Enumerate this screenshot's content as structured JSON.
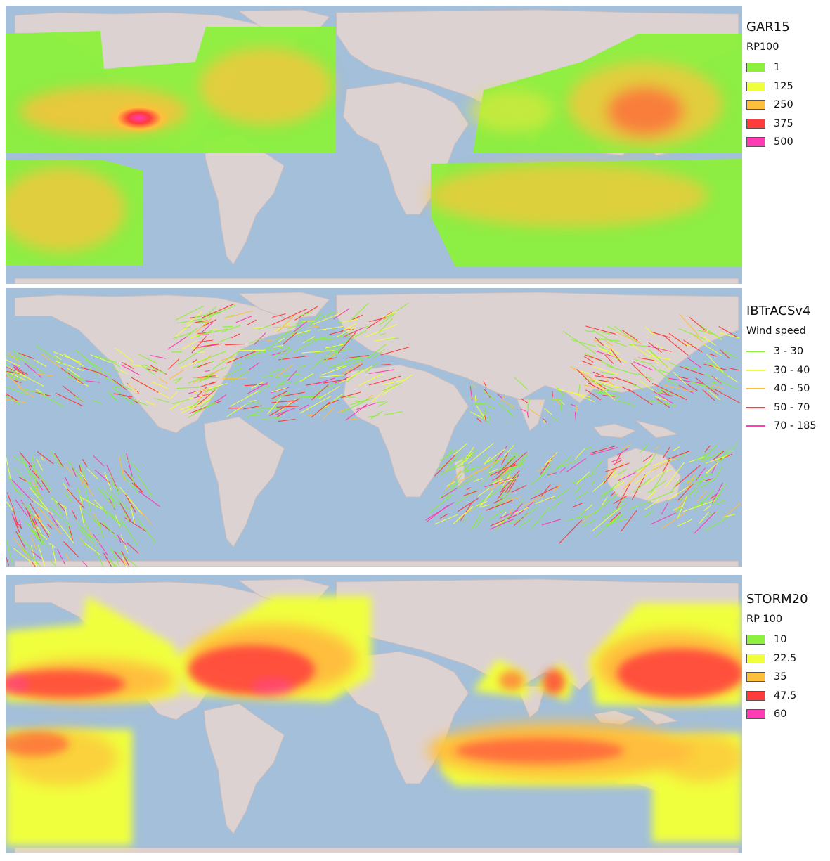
{
  "panels": [
    {
      "title": "GAR15",
      "subtitle": "RP100",
      "legend_type": "fill",
      "legend": [
        {
          "label": "1",
          "color": "#8cf03c"
        },
        {
          "label": "125",
          "color": "#f0ff3c"
        },
        {
          "label": "250",
          "color": "#ffbe3c"
        },
        {
          "label": "375",
          "color": "#ff3c3c"
        },
        {
          "label": "500",
          "color": "#ff3cb4"
        }
      ]
    },
    {
      "title": "IBTrACSv4",
      "subtitle": "Wind speed",
      "legend_type": "line",
      "legend": [
        {
          "label": "3 - 30",
          "color": "#8cf03c"
        },
        {
          "label": "30 - 40",
          "color": "#f0ff3c"
        },
        {
          "label": "40 - 50",
          "color": "#ffbe3c"
        },
        {
          "label": "50 - 70",
          "color": "#ff3c3c"
        },
        {
          "label": "70 - 185",
          "color": "#ff3cb4"
        }
      ]
    },
    {
      "title": "STORM20",
      "subtitle": "RP 100",
      "legend_type": "fill",
      "legend": [
        {
          "label": "10",
          "color": "#8cf03c"
        },
        {
          "label": "22.5",
          "color": "#f0ff3c"
        },
        {
          "label": "35",
          "color": "#ffbe3c"
        },
        {
          "label": "47.5",
          "color": "#ff3c3c"
        },
        {
          "label": "60",
          "color": "#ff3cb4"
        }
      ]
    }
  ],
  "colors": {
    "ocean": "#a3bfd9",
    "land": "#ddd2d2"
  }
}
